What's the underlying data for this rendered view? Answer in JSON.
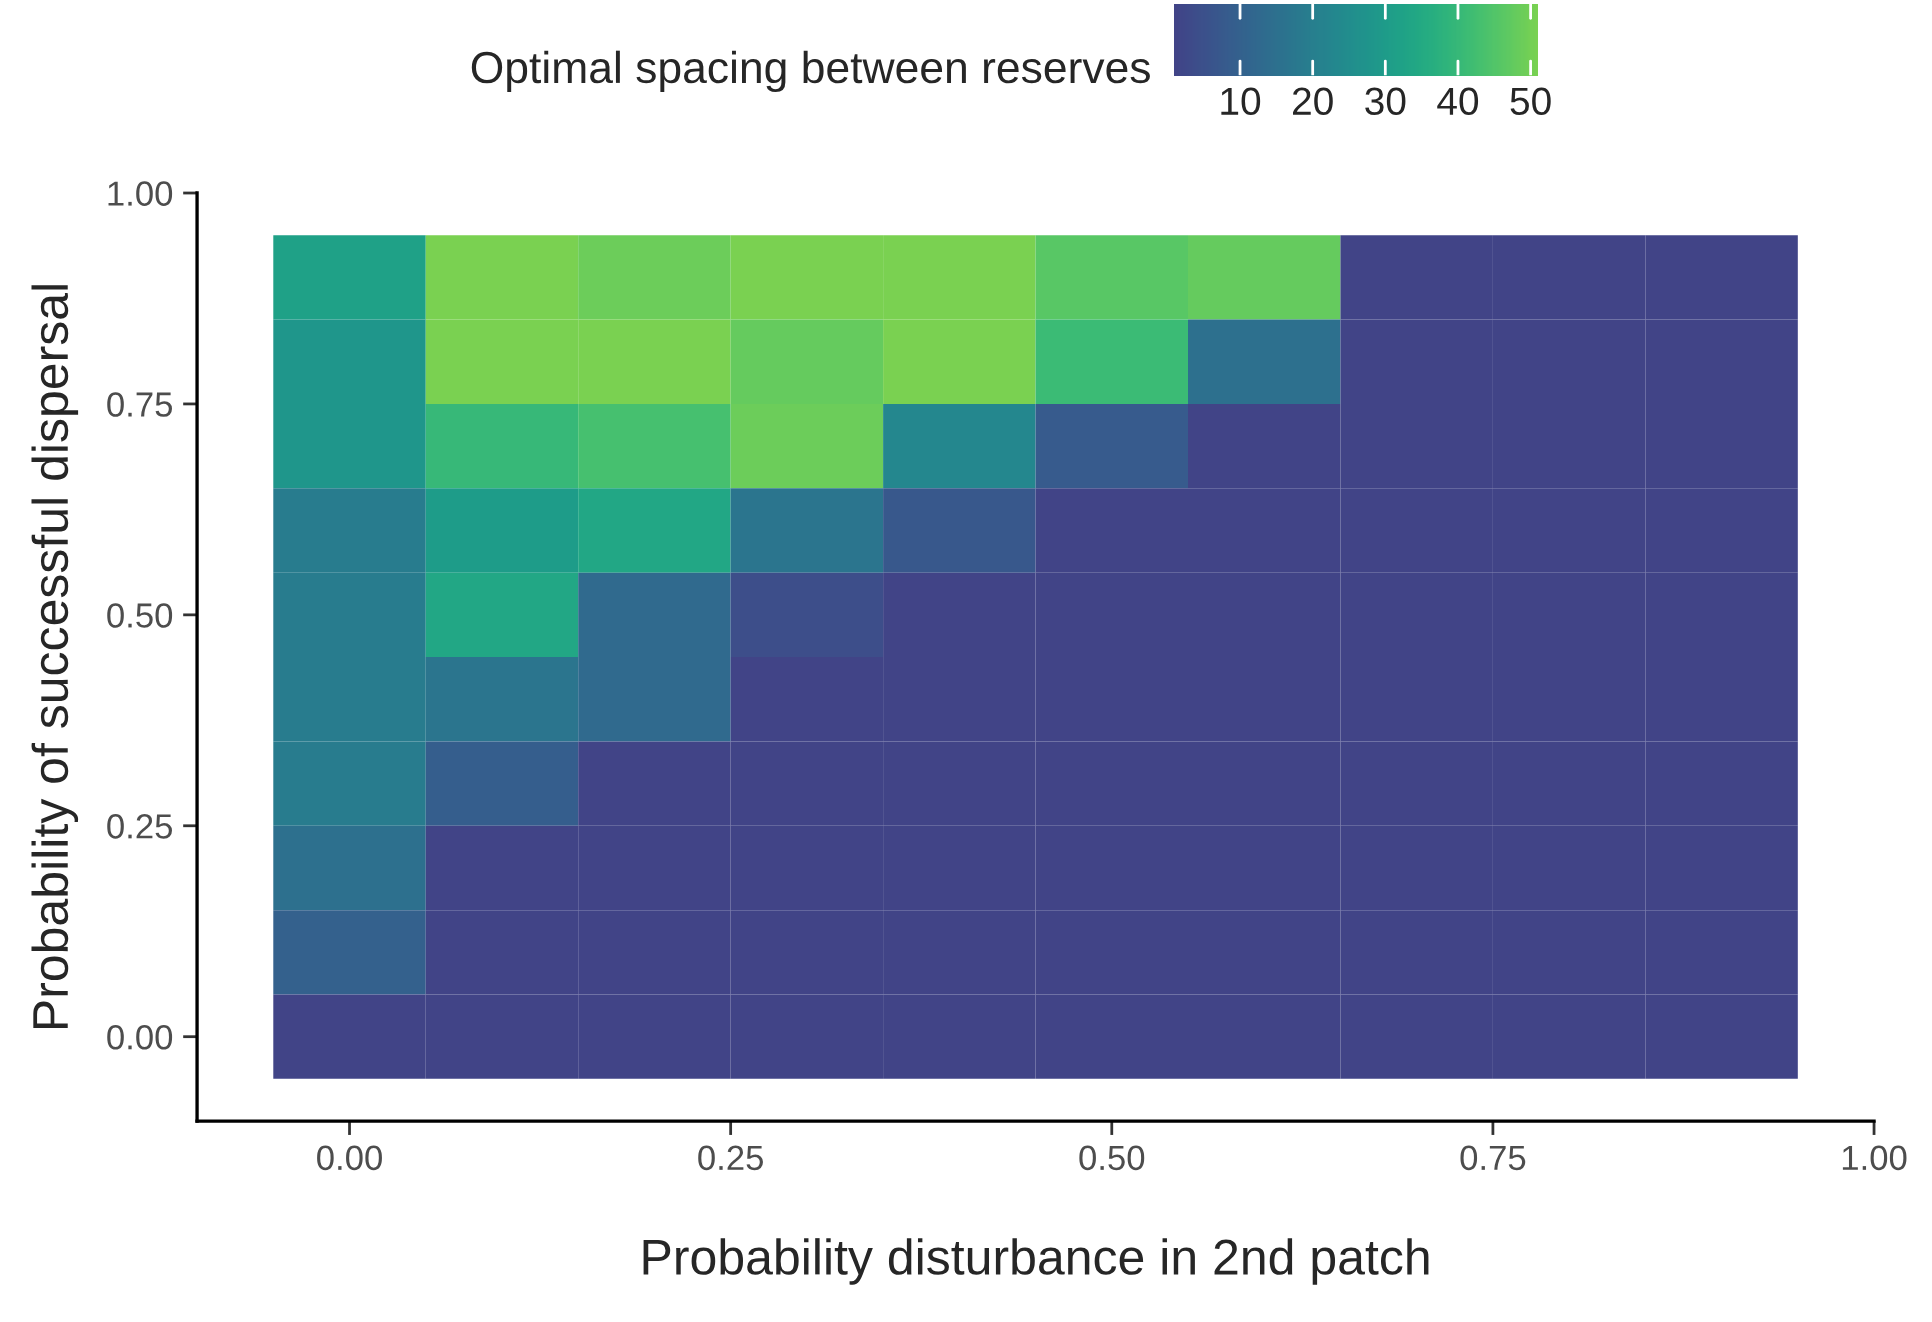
{
  "chart_data": {
    "type": "heatmap",
    "xlabel": "Probability disturbance in 2nd patch",
    "ylabel": "Probability of successful dispersal",
    "legend_title": "Optimal spacing between reserves",
    "x": [
      0,
      0.1,
      0.2,
      0.3,
      0.4,
      0.5,
      0.6,
      0.7,
      0.8,
      0.9
    ],
    "y": [
      0.9,
      0.8,
      0.7,
      0.6,
      0.5,
      0.4,
      0.3,
      0.2,
      0.1,
      0
    ],
    "cells": [
      [
        32,
        51,
        49,
        51,
        51,
        46,
        48,
        1,
        1,
        1
      ],
      [
        28,
        51,
        51,
        48,
        51,
        41,
        15,
        1,
        1,
        1
      ],
      [
        28,
        40,
        43,
        49,
        23,
        8,
        1,
        1,
        1,
        1
      ],
      [
        19,
        30,
        34,
        17,
        7,
        1,
        1,
        1,
        1,
        1
      ],
      [
        19,
        34,
        13,
        4,
        1,
        1,
        1,
        1,
        1,
        1
      ],
      [
        19,
        17,
        13,
        1,
        1,
        1,
        1,
        1,
        1,
        1
      ],
      [
        19,
        9,
        1,
        1,
        1,
        1,
        1,
        1,
        1,
        1
      ],
      [
        15,
        1,
        1,
        1,
        1,
        1,
        1,
        1,
        1,
        1
      ],
      [
        10,
        1,
        1,
        1,
        1,
        1,
        1,
        1,
        1,
        1
      ],
      [
        1,
        1,
        1,
        1,
        1,
        1,
        1,
        1,
        1,
        1
      ]
    ],
    "clim": [
      1,
      51
    ],
    "cticks": [
      10,
      20,
      30,
      40,
      50
    ],
    "xlim": [
      -0.1,
      1.0
    ],
    "ylim": [
      -0.1,
      1.0
    ],
    "xticks": [
      {
        "value": 0,
        "label": "0.00"
      },
      {
        "value": 0.25,
        "label": "0.25"
      },
      {
        "value": 0.5,
        "label": "0.50"
      },
      {
        "value": 0.75,
        "label": "0.75"
      },
      {
        "value": 1.0,
        "label": "1.00"
      }
    ],
    "yticks": [
      {
        "value": 0,
        "label": "0.00"
      },
      {
        "value": 0.25,
        "label": "0.25"
      },
      {
        "value": 0.5,
        "label": "0.50"
      },
      {
        "value": 0.75,
        "label": "0.75"
      },
      {
        "value": 1.0,
        "label": "1.00"
      }
    ],
    "grid": false
  }
}
